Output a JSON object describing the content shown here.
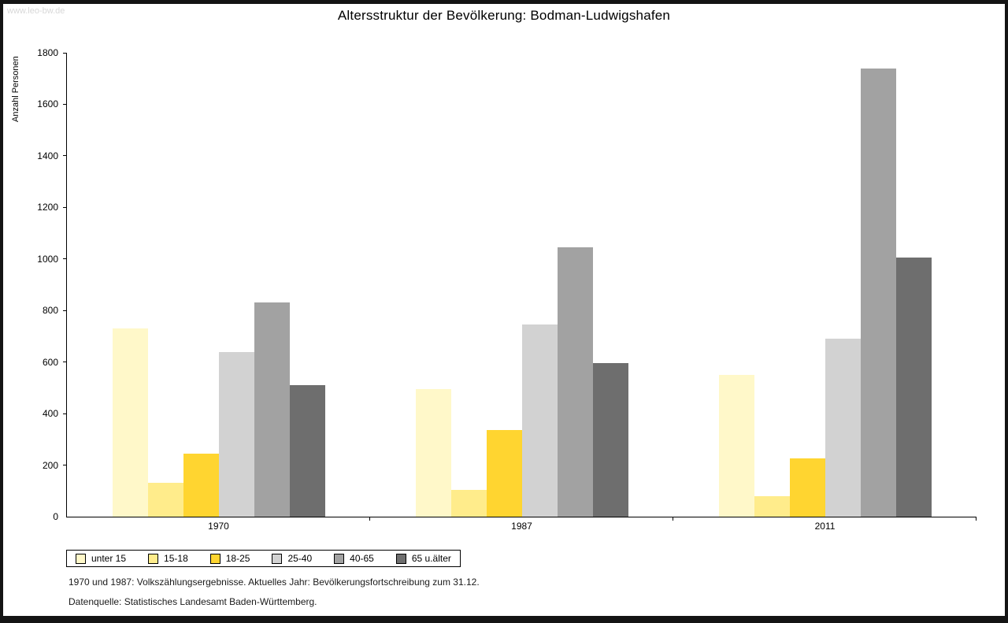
{
  "page": {
    "watermark": "www.leo-bw.de",
    "title": "Altersstruktur der Bevölkerung: Bodman-Ludwigshafen",
    "footnote1": "1970 und 1987: Volkszählungsergebnisse. Aktuelles Jahr: Bevölkerungsfortschreibung zum 31.12.",
    "footnote2": "Datenquelle: Statistisches Landesamt Baden-Württemberg."
  },
  "chart_data": {
    "type": "bar",
    "title": "Altersstruktur der Bevölkerung: Bodman-Ludwigshafen",
    "xlabel": "",
    "ylabel": "Anzahl Personen",
    "ylim": [
      0,
      1800
    ],
    "y_ticks": [
      0,
      200,
      400,
      600,
      800,
      1000,
      1200,
      1400,
      1600,
      1800
    ],
    "grid": false,
    "legend_position": "bottom-left",
    "categories": [
      "1970",
      "1987",
      "2011"
    ],
    "series": [
      {
        "name": "unter 15",
        "color": "#FFF8C9",
        "values": [
          730,
          495,
          550
        ]
      },
      {
        "name": "15-18",
        "color": "#FFEC8B",
        "values": [
          130,
          105,
          80
        ]
      },
      {
        "name": "18-25",
        "color": "#FFD530",
        "values": [
          245,
          335,
          225
        ]
      },
      {
        "name": "25-40",
        "color": "#D2D2D2",
        "values": [
          640,
          745,
          690
        ]
      },
      {
        "name": "40-65",
        "color": "#A2A2A2",
        "values": [
          830,
          1045,
          1740
        ]
      },
      {
        "name": "65 u.älter",
        "color": "#6E6E6E",
        "values": [
          510,
          595,
          1005
        ]
      }
    ]
  }
}
